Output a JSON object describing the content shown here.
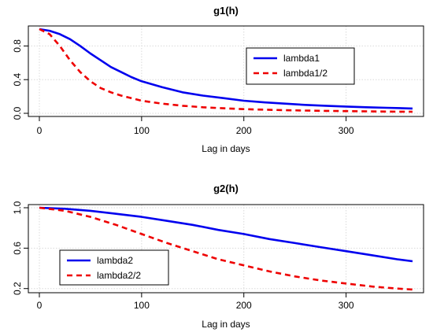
{
  "chart_data": [
    {
      "type": "line",
      "title": "g1(h)",
      "xlabel": "Lag in days",
      "ylabel": "",
      "xlim": [
        0,
        365
      ],
      "ylim": [
        0,
        1
      ],
      "xticks": [
        "0",
        "100",
        "200",
        "300"
      ],
      "yticks": [
        "0.0",
        "0.4",
        "0.8"
      ],
      "grid": true,
      "legend_position": "top-right",
      "series": [
        {
          "name": "lambda1",
          "color": "#0000ee",
          "dash": "solid",
          "x": [
            0,
            10,
            20,
            30,
            40,
            50,
            60,
            70,
            80,
            90,
            100,
            120,
            140,
            160,
            180,
            200,
            220,
            240,
            260,
            280,
            300,
            320,
            340,
            365
          ],
          "y": [
            1.0,
            0.98,
            0.94,
            0.88,
            0.8,
            0.71,
            0.63,
            0.55,
            0.49,
            0.43,
            0.38,
            0.31,
            0.25,
            0.21,
            0.18,
            0.15,
            0.13,
            0.115,
            0.1,
            0.09,
            0.08,
            0.072,
            0.065,
            0.057
          ]
        },
        {
          "name": "lambda1/2",
          "color": "#ee0000",
          "dash": "dashed",
          "x": [
            0,
            10,
            20,
            30,
            40,
            50,
            60,
            70,
            80,
            90,
            100,
            120,
            140,
            160,
            180,
            200,
            220,
            240,
            260,
            280,
            300,
            320,
            340,
            365
          ],
          "y": [
            1.0,
            0.94,
            0.8,
            0.63,
            0.49,
            0.38,
            0.3,
            0.25,
            0.21,
            0.18,
            0.15,
            0.115,
            0.09,
            0.072,
            0.06,
            0.05,
            0.043,
            0.037,
            0.033,
            0.029,
            0.026,
            0.023,
            0.021,
            0.019
          ]
        }
      ]
    },
    {
      "type": "line",
      "title": "g2(h)",
      "xlabel": "Lag in days",
      "ylabel": "",
      "xlim": [
        0,
        365
      ],
      "ylim": [
        0.19,
        1.0
      ],
      "xticks": [
        "0",
        "100",
        "200",
        "300"
      ],
      "yticks": [
        "0.2",
        "0.6",
        "1.0"
      ],
      "grid": true,
      "legend_position": "bottom-left",
      "series": [
        {
          "name": "lambda2",
          "color": "#0000ee",
          "dash": "solid",
          "x": [
            0,
            25,
            50,
            75,
            100,
            125,
            150,
            175,
            200,
            225,
            250,
            275,
            300,
            325,
            350,
            365
          ],
          "y": [
            1.0,
            0.99,
            0.97,
            0.94,
            0.91,
            0.87,
            0.83,
            0.78,
            0.74,
            0.69,
            0.65,
            0.61,
            0.57,
            0.53,
            0.49,
            0.47
          ]
        },
        {
          "name": "lambda2/2",
          "color": "#ee0000",
          "dash": "dashed",
          "x": [
            0,
            25,
            50,
            75,
            100,
            125,
            150,
            175,
            200,
            225,
            250,
            275,
            300,
            325,
            350,
            365
          ],
          "y": [
            1.0,
            0.97,
            0.91,
            0.83,
            0.74,
            0.65,
            0.57,
            0.49,
            0.43,
            0.37,
            0.32,
            0.28,
            0.25,
            0.22,
            0.2,
            0.19
          ]
        }
      ]
    }
  ]
}
